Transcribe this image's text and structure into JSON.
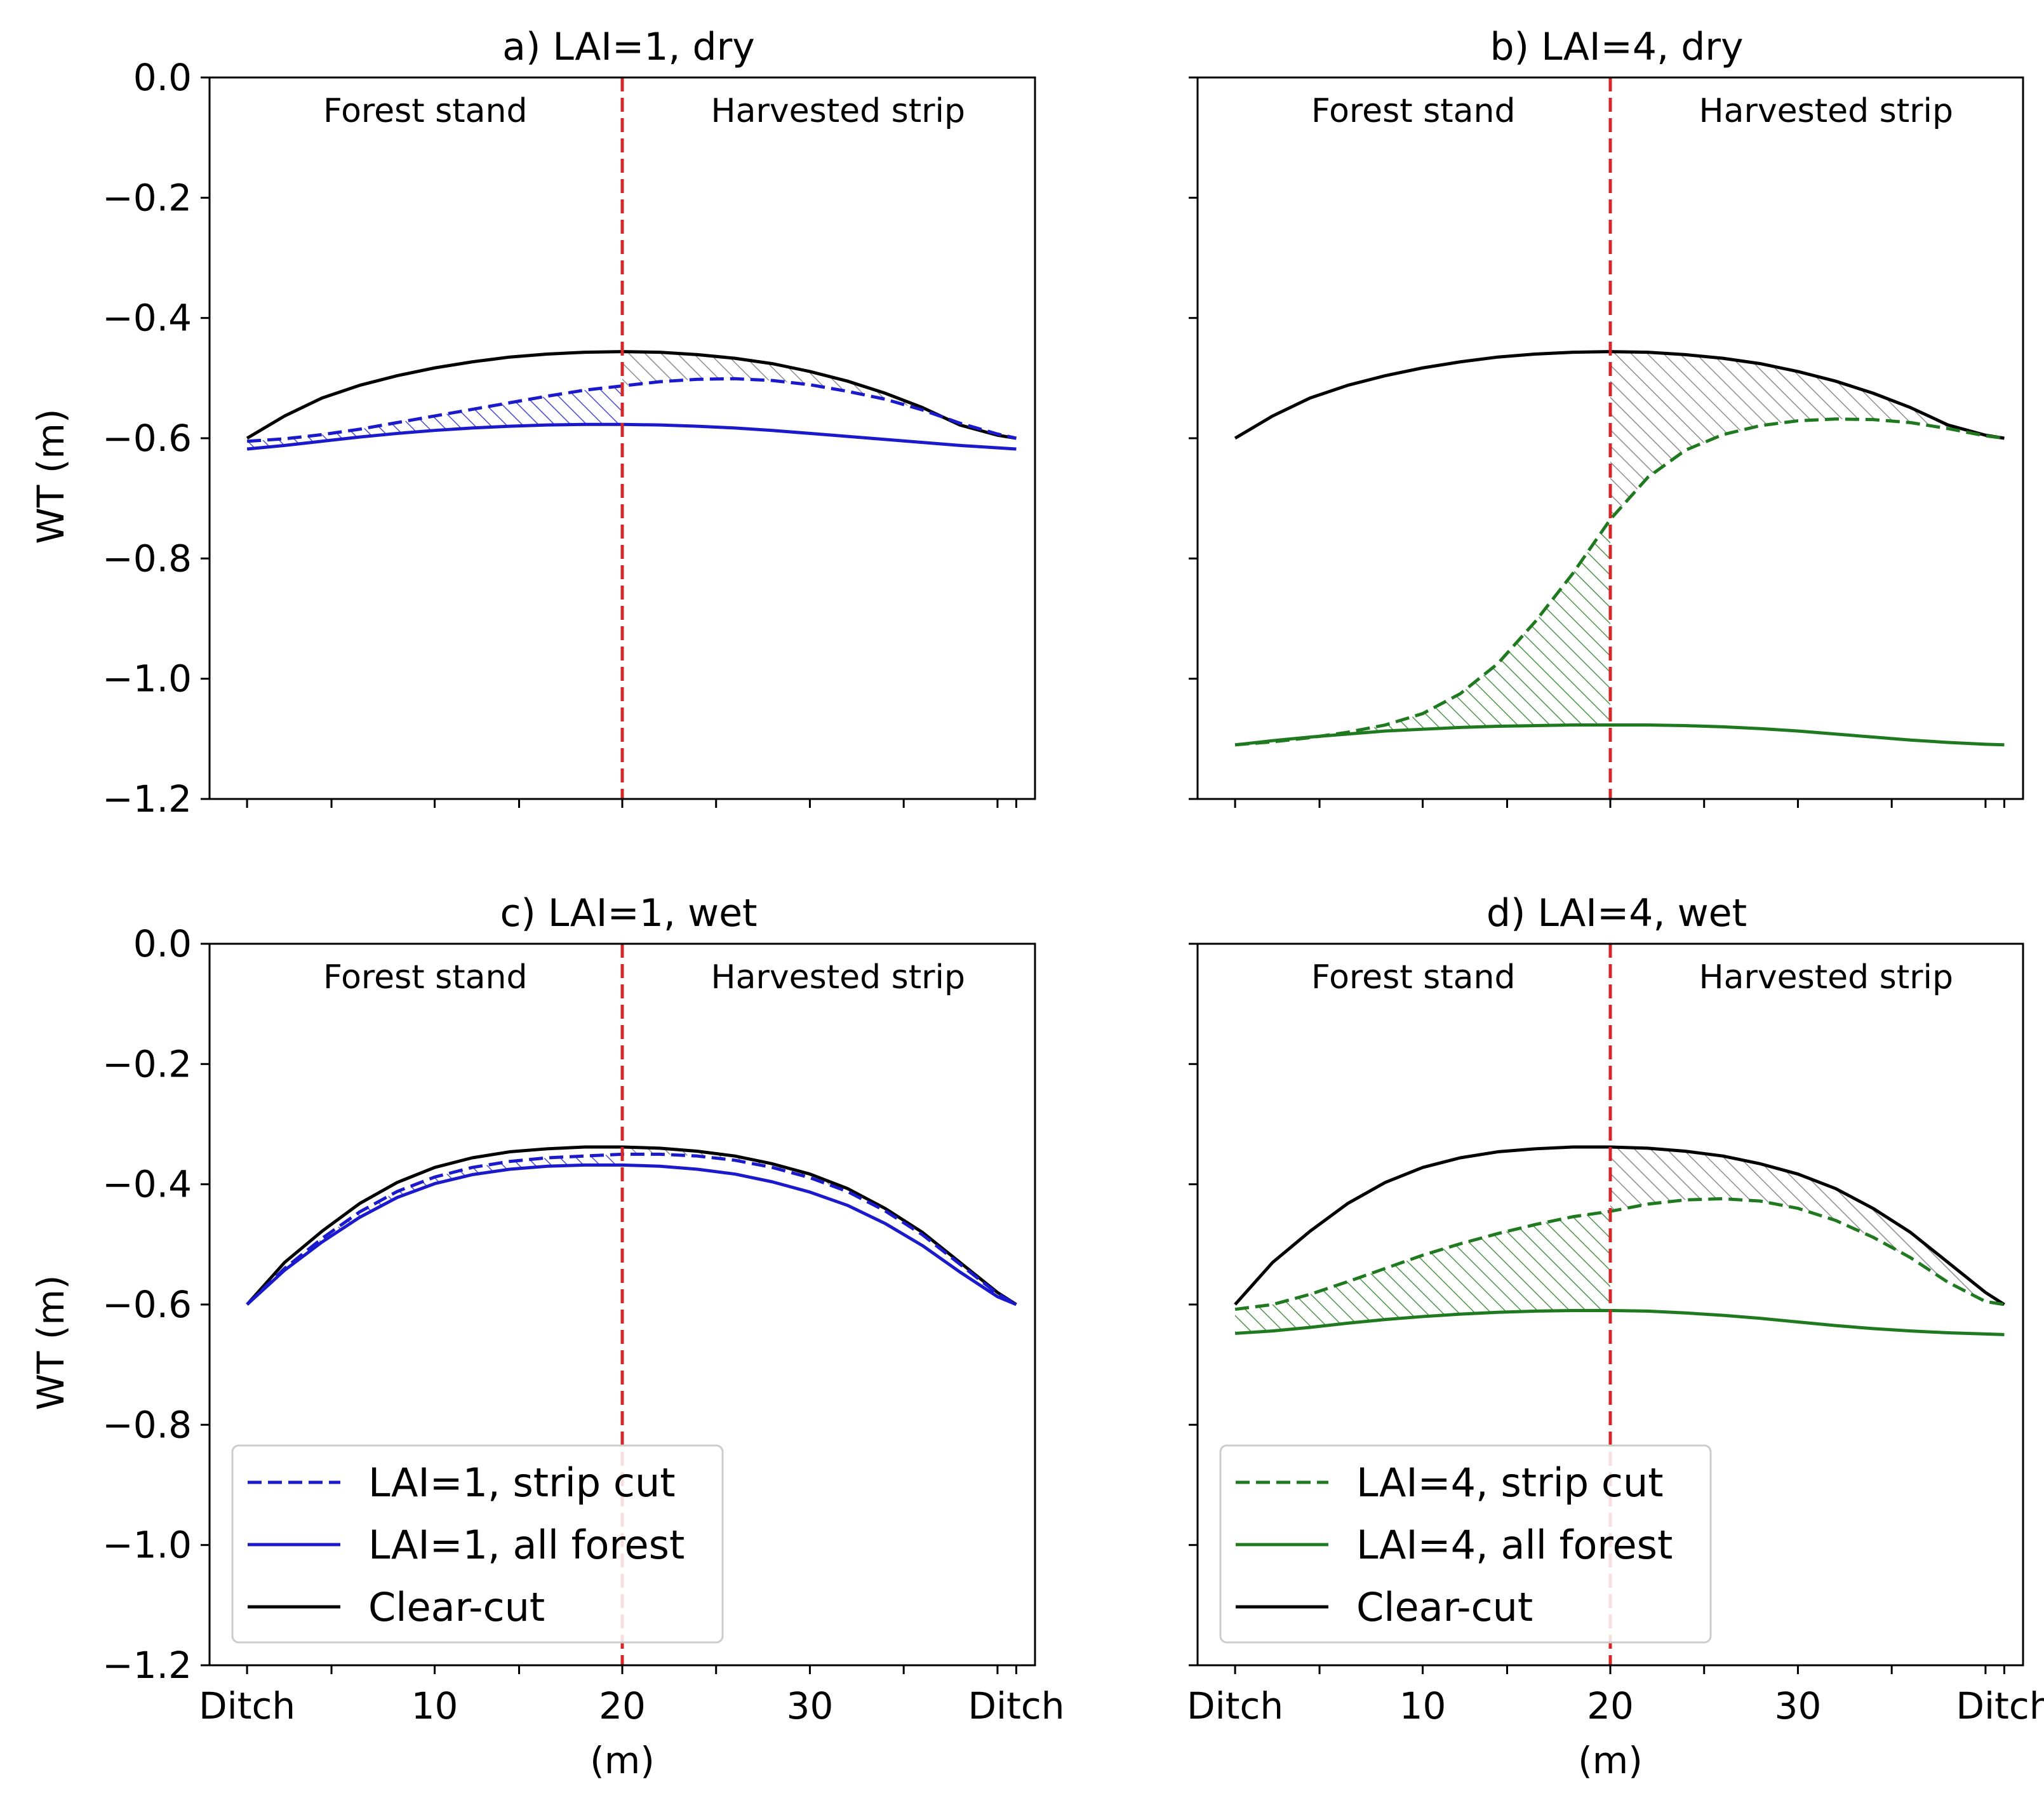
{
  "colors": {
    "strip_lai1": "#1a1acc",
    "strip_lai4": "#1f7a1f",
    "clearcut": "#000000",
    "boundary": "#d62728",
    "hatch_gray": "#808080"
  },
  "chart_data": [
    {
      "type": "line",
      "title": "a) LAI=1, dry",
      "xlabel": "",
      "ylabel": "WT (m)",
      "xlim": [
        -2,
        42
      ],
      "ylim": [
        -1.2,
        0.0
      ],
      "yticks": [
        "0.0",
        "−0.2",
        "−0.4",
        "−0.6",
        "−0.8",
        "−1.0",
        "−1.2"
      ],
      "yticklabels_visible": true,
      "xticklabels_visible": false,
      "region_labels": [
        "Forest stand",
        "Harvested strip"
      ],
      "boundary_x": 20,
      "x": [
        0,
        2,
        4,
        6,
        8,
        10,
        12,
        14,
        16,
        18,
        20,
        22,
        24,
        26,
        28,
        30,
        32,
        34,
        36,
        38,
        40,
        41
      ],
      "series": [
        {
          "name": "Clear-cut",
          "style": "solid",
          "color": "clearcut",
          "values": [
            -0.6,
            -0.563,
            -0.533,
            -0.512,
            -0.496,
            -0.483,
            -0.473,
            -0.465,
            -0.46,
            -0.457,
            -0.456,
            -0.457,
            -0.461,
            -0.467,
            -0.476,
            -0.489,
            -0.505,
            -0.525,
            -0.549,
            -0.578,
            -0.595,
            -0.6
          ]
        },
        {
          "name": "LAI=1, strip cut",
          "style": "dashed",
          "color": "strip_lai1",
          "values": [
            -0.605,
            -0.601,
            -0.594,
            -0.585,
            -0.574,
            -0.563,
            -0.552,
            -0.541,
            -0.53,
            -0.52,
            -0.513,
            -0.506,
            -0.502,
            -0.501,
            -0.504,
            -0.511,
            -0.522,
            -0.535,
            -0.553,
            -0.575,
            -0.593,
            -0.6
          ]
        },
        {
          "name": "LAI=1, all forest",
          "style": "solid",
          "color": "strip_lai1",
          "values": [
            -0.618,
            -0.612,
            -0.605,
            -0.598,
            -0.592,
            -0.587,
            -0.583,
            -0.58,
            -0.578,
            -0.577,
            -0.577,
            -0.578,
            -0.58,
            -0.583,
            -0.587,
            -0.592,
            -0.597,
            -0.602,
            -0.607,
            -0.612,
            -0.616,
            -0.618
          ]
        }
      ]
    },
    {
      "type": "line",
      "title": "b) LAI=4, dry",
      "xlabel": "",
      "ylabel": "",
      "xlim": [
        -2,
        42
      ],
      "ylim": [
        -1.2,
        0.0
      ],
      "yticks": [
        "0.0",
        "−0.2",
        "−0.4",
        "−0.6",
        "−0.8",
        "−1.0",
        "−1.2"
      ],
      "yticklabels_visible": false,
      "xticklabels_visible": false,
      "region_labels": [
        "Forest stand",
        "Harvested strip"
      ],
      "boundary_x": 20,
      "x": [
        0,
        2,
        4,
        6,
        8,
        10,
        12,
        14,
        16,
        18,
        20,
        22,
        24,
        26,
        28,
        30,
        32,
        34,
        36,
        38,
        40,
        41
      ],
      "series": [
        {
          "name": "Clear-cut",
          "style": "solid",
          "color": "clearcut",
          "values": [
            -0.6,
            -0.563,
            -0.533,
            -0.512,
            -0.496,
            -0.483,
            -0.473,
            -0.465,
            -0.46,
            -0.457,
            -0.456,
            -0.457,
            -0.461,
            -0.467,
            -0.476,
            -0.489,
            -0.505,
            -0.525,
            -0.549,
            -0.578,
            -0.595,
            -0.6
          ]
        },
        {
          "name": "LAI=4, strip cut",
          "style": "dashed",
          "color": "strip_lai4",
          "values": [
            -1.11,
            -1.105,
            -1.098,
            -1.089,
            -1.077,
            -1.058,
            -1.025,
            -0.975,
            -0.905,
            -0.825,
            -0.735,
            -0.665,
            -0.62,
            -0.594,
            -0.579,
            -0.571,
            -0.568,
            -0.569,
            -0.574,
            -0.584,
            -0.596,
            -0.6
          ]
        },
        {
          "name": "LAI=4, all forest",
          "style": "solid",
          "color": "strip_lai4",
          "values": [
            -1.11,
            -1.103,
            -1.097,
            -1.092,
            -1.087,
            -1.084,
            -1.081,
            -1.079,
            -1.078,
            -1.077,
            -1.077,
            -1.077,
            -1.078,
            -1.08,
            -1.083,
            -1.087,
            -1.092,
            -1.097,
            -1.102,
            -1.106,
            -1.109,
            -1.11
          ]
        }
      ]
    },
    {
      "type": "line",
      "title": "c) LAI=1, wet",
      "xlabel": "(m)",
      "ylabel": "WT (m)",
      "xlim": [
        -2,
        42
      ],
      "ylim": [
        -1.2,
        0.0
      ],
      "yticks": [
        "0.0",
        "−0.2",
        "−0.4",
        "−0.6",
        "−0.8",
        "−1.0",
        "−1.2"
      ],
      "yticklabels_visible": true,
      "xticklabels_visible": true,
      "xticks": [
        {
          "x": 0,
          "label": "Ditch"
        },
        {
          "x": 10,
          "label": "10"
        },
        {
          "x": 20,
          "label": "20"
        },
        {
          "x": 30,
          "label": "30"
        },
        {
          "x": 41,
          "label": "Ditch"
        }
      ],
      "region_labels": [
        "Forest stand",
        "Harvested strip"
      ],
      "boundary_x": 20,
      "legend": {
        "loc": "lower-left",
        "entries": [
          {
            "label": "LAI=1, strip cut",
            "style": "dashed",
            "color": "strip_lai1"
          },
          {
            "label": "LAI=1, all forest",
            "style": "solid",
            "color": "strip_lai1"
          },
          {
            "label": "Clear-cut",
            "style": "solid",
            "color": "clearcut"
          }
        ]
      },
      "x": [
        0,
        2,
        4,
        6,
        8,
        10,
        12,
        14,
        16,
        18,
        20,
        22,
        24,
        26,
        28,
        30,
        32,
        34,
        36,
        38,
        40,
        41
      ],
      "series": [
        {
          "name": "Clear-cut",
          "style": "solid",
          "color": "clearcut",
          "values": [
            -0.6,
            -0.53,
            -0.478,
            -0.432,
            -0.397,
            -0.372,
            -0.356,
            -0.346,
            -0.341,
            -0.338,
            -0.338,
            -0.34,
            -0.345,
            -0.353,
            -0.366,
            -0.383,
            -0.407,
            -0.44,
            -0.48,
            -0.53,
            -0.58,
            -0.6
          ]
        },
        {
          "name": "LAI=1, strip cut",
          "style": "dashed",
          "color": "strip_lai1",
          "values": [
            -0.6,
            -0.54,
            -0.49,
            -0.446,
            -0.412,
            -0.388,
            -0.372,
            -0.362,
            -0.356,
            -0.353,
            -0.35,
            -0.35,
            -0.353,
            -0.36,
            -0.372,
            -0.389,
            -0.412,
            -0.444,
            -0.484,
            -0.533,
            -0.582,
            -0.6
          ]
        },
        {
          "name": "LAI=1, all forest",
          "style": "solid",
          "color": "strip_lai1",
          "values": [
            -0.6,
            -0.543,
            -0.496,
            -0.455,
            -0.422,
            -0.399,
            -0.384,
            -0.375,
            -0.37,
            -0.368,
            -0.368,
            -0.37,
            -0.375,
            -0.383,
            -0.396,
            -0.413,
            -0.435,
            -0.465,
            -0.502,
            -0.546,
            -0.587,
            -0.6
          ]
        }
      ]
    },
    {
      "type": "line",
      "title": "d) LAI=4, wet",
      "xlabel": "(m)",
      "ylabel": "",
      "xlim": [
        -2,
        42
      ],
      "ylim": [
        -1.2,
        0.0
      ],
      "yticks": [
        "0.0",
        "−0.2",
        "−0.4",
        "−0.6",
        "−0.8",
        "−1.0",
        "−1.2"
      ],
      "yticklabels_visible": false,
      "xticklabels_visible": true,
      "xticks": [
        {
          "x": 0,
          "label": "Ditch"
        },
        {
          "x": 10,
          "label": "10"
        },
        {
          "x": 20,
          "label": "20"
        },
        {
          "x": 30,
          "label": "30"
        },
        {
          "x": 41,
          "label": "Ditch"
        }
      ],
      "region_labels": [
        "Forest stand",
        "Harvested strip"
      ],
      "boundary_x": 20,
      "legend": {
        "loc": "lower-left",
        "entries": [
          {
            "label": "LAI=4, strip cut",
            "style": "dashed",
            "color": "strip_lai4"
          },
          {
            "label": "LAI=4, all forest",
            "style": "solid",
            "color": "strip_lai4"
          },
          {
            "label": "Clear-cut",
            "style": "solid",
            "color": "clearcut"
          }
        ]
      },
      "x": [
        0,
        2,
        4,
        6,
        8,
        10,
        12,
        14,
        16,
        18,
        20,
        22,
        24,
        26,
        28,
        30,
        32,
        34,
        36,
        38,
        40,
        41
      ],
      "series": [
        {
          "name": "Clear-cut",
          "style": "solid",
          "color": "clearcut",
          "values": [
            -0.6,
            -0.53,
            -0.478,
            -0.432,
            -0.397,
            -0.372,
            -0.356,
            -0.346,
            -0.341,
            -0.338,
            -0.338,
            -0.34,
            -0.345,
            -0.353,
            -0.366,
            -0.383,
            -0.407,
            -0.44,
            -0.48,
            -0.53,
            -0.58,
            -0.6
          ]
        },
        {
          "name": "LAI=4, strip cut",
          "style": "dashed",
          "color": "strip_lai4",
          "values": [
            -0.608,
            -0.6,
            -0.583,
            -0.562,
            -0.54,
            -0.518,
            -0.499,
            -0.482,
            -0.467,
            -0.454,
            -0.445,
            -0.433,
            -0.426,
            -0.424,
            -0.428,
            -0.44,
            -0.46,
            -0.488,
            -0.522,
            -0.563,
            -0.595,
            -0.6
          ]
        },
        {
          "name": "LAI=4, all forest",
          "style": "solid",
          "color": "strip_lai4",
          "values": [
            -0.648,
            -0.644,
            -0.638,
            -0.631,
            -0.625,
            -0.62,
            -0.616,
            -0.613,
            -0.611,
            -0.61,
            -0.61,
            -0.611,
            -0.614,
            -0.618,
            -0.623,
            -0.629,
            -0.635,
            -0.64,
            -0.644,
            -0.647,
            -0.649,
            -0.65
          ]
        }
      ]
    }
  ]
}
